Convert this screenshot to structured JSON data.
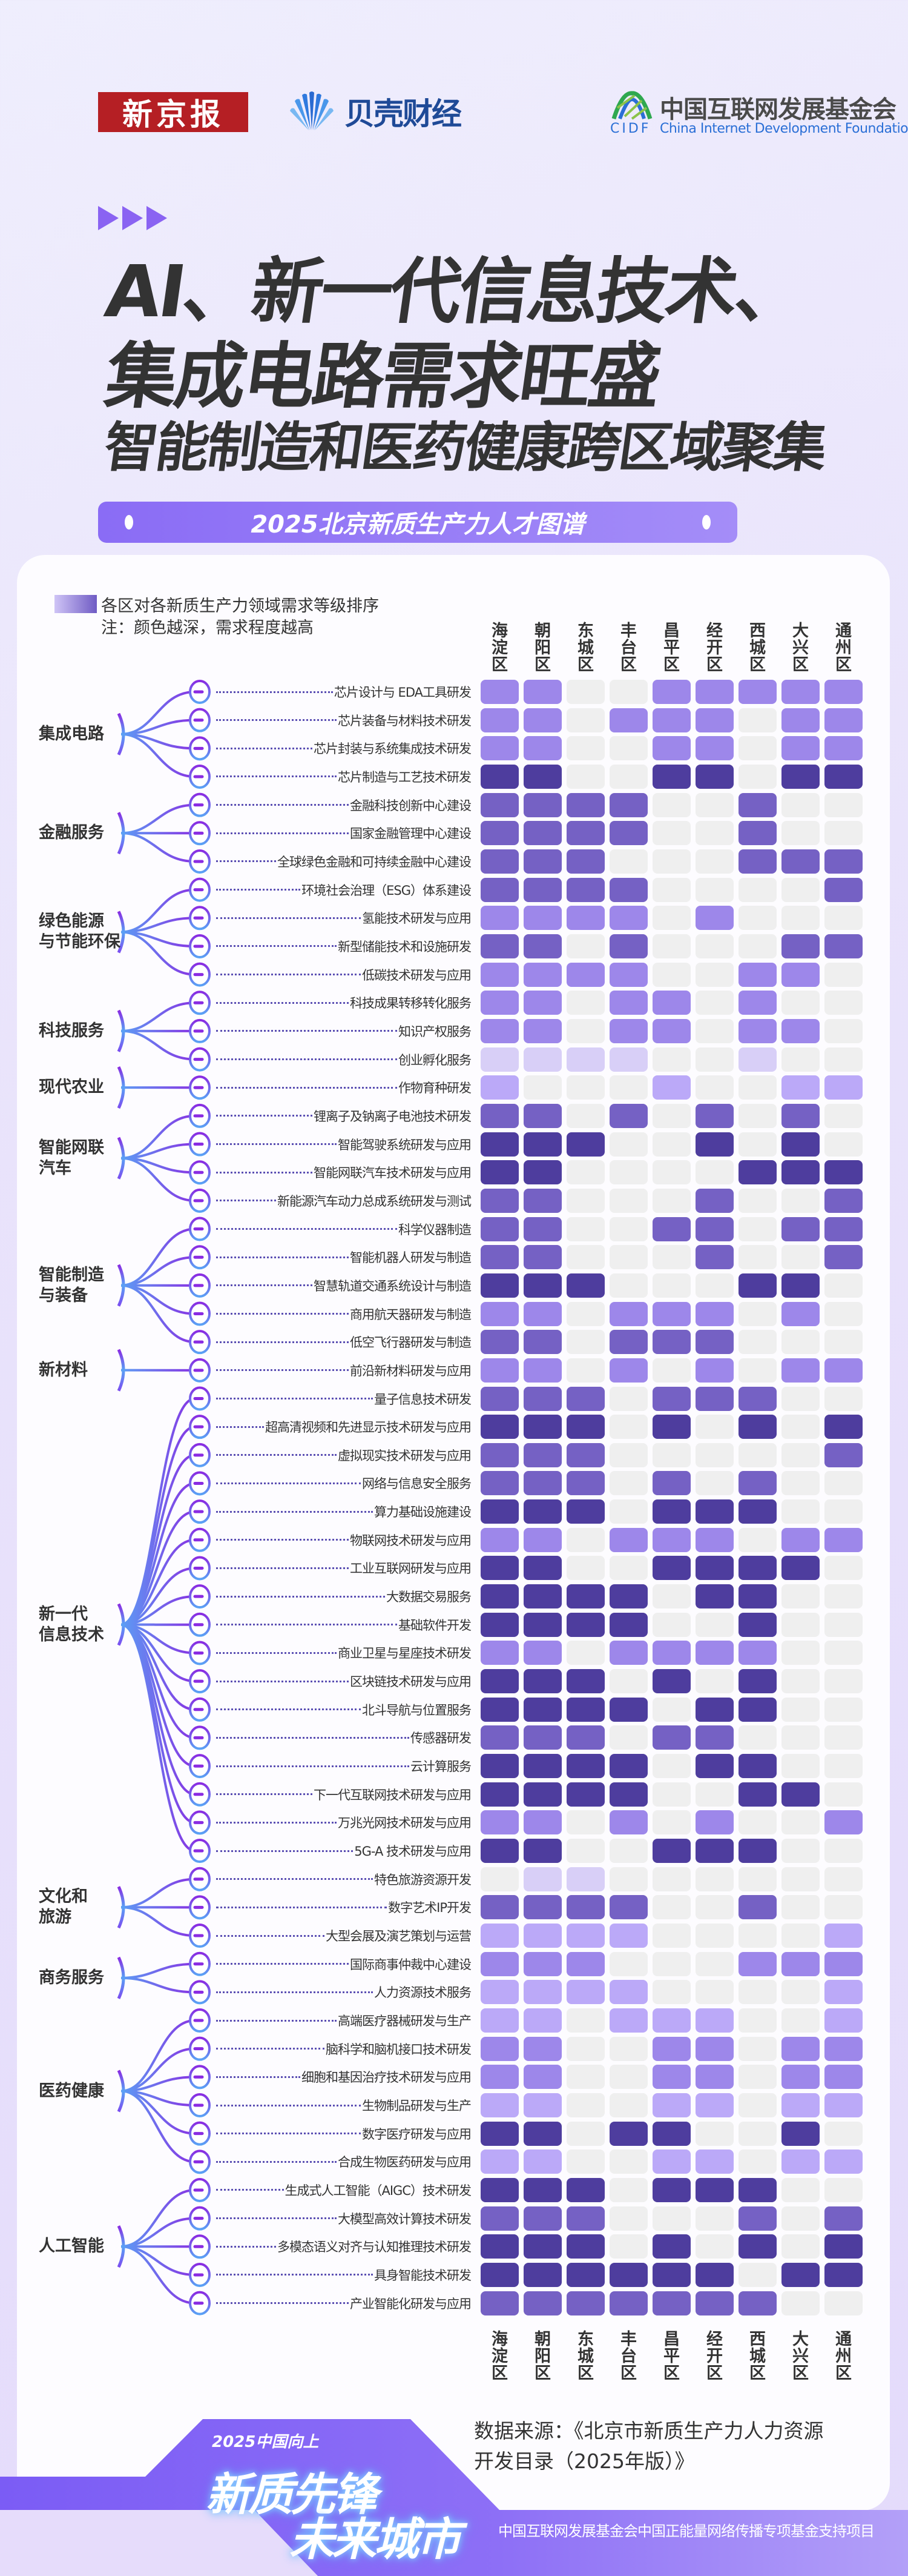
{
  "header": {
    "logos": {
      "xinjingbao": "新京报",
      "beike": "贝壳财经",
      "cidf_cn": "中国互联网发展基金会",
      "cidf_abbr": "CIDF",
      "cidf_en": "China Internet Development Foundation"
    },
    "title_lines": [
      "AI、新一代信息技术、",
      "集成电路需求旺盛",
      "智能制造和医药健康跨区域聚集"
    ],
    "subtitle": "2025北京新质生产力人才图谱"
  },
  "legend": {
    "title": "各区对各新质生产力领域需求等级排序",
    "note": "注：颜色越深，需求程度越高"
  },
  "chart_data": {
    "type": "heatmap",
    "value_meaning": "需求等级（0=无，1–5 颜色越深需求越高）",
    "level_colors": [
      "#efefef",
      "#d8cff7",
      "#bba9f8",
      "#9d87ea",
      "#7561c4",
      "#4e3d9e"
    ],
    "columns": [
      "海淀区",
      "朝阳区",
      "东城区",
      "丰台区",
      "昌平区",
      "经开区",
      "西城区",
      "大兴区",
      "通州区"
    ],
    "categories": [
      {
        "name": "集成电路",
        "rows": [
          {
            "label": "芯片设计与 EDA工具研发",
            "values": [
              3,
              3,
              0,
              0,
              3,
              3,
              3,
              3,
              3
            ]
          },
          {
            "label": "芯片装备与材料技术研发",
            "values": [
              3,
              3,
              0,
              3,
              3,
              3,
              0,
              3,
              3
            ]
          },
          {
            "label": "芯片封装与系统集成技术研发",
            "values": [
              3,
              3,
              0,
              0,
              3,
              3,
              0,
              3,
              3
            ]
          },
          {
            "label": "芯片制造与工艺技术研发",
            "values": [
              5,
              5,
              0,
              0,
              5,
              5,
              0,
              5,
              5
            ]
          }
        ]
      },
      {
        "name": "金融服务",
        "rows": [
          {
            "label": "金融科技创新中心建设",
            "values": [
              4,
              4,
              4,
              4,
              0,
              0,
              4,
              0,
              0
            ]
          },
          {
            "label": "国家金融管理中心建设",
            "values": [
              4,
              4,
              4,
              4,
              0,
              0,
              4,
              0,
              0
            ]
          },
          {
            "label": "全球绿色金融和可持续金融中心建设",
            "values": [
              4,
              4,
              4,
              0,
              0,
              0,
              4,
              4,
              4
            ]
          }
        ]
      },
      {
        "name": "绿色能源\n与节能环保",
        "rows": [
          {
            "label": "环境社会治理（ESG）体系建设",
            "values": [
              4,
              4,
              4,
              4,
              0,
              0,
              0,
              0,
              4
            ]
          },
          {
            "label": "氢能技术研发与应用",
            "values": [
              3,
              3,
              3,
              3,
              0,
              3,
              0,
              0,
              0
            ]
          },
          {
            "label": "新型储能技术和设施研发",
            "values": [
              4,
              4,
              0,
              4,
              0,
              0,
              0,
              4,
              4
            ]
          },
          {
            "label": "低碳技术研发与应用",
            "values": [
              3,
              3,
              3,
              3,
              0,
              0,
              3,
              3,
              0
            ]
          }
        ]
      },
      {
        "name": "科技服务",
        "rows": [
          {
            "label": "科技成果转移转化服务",
            "values": [
              3,
              3,
              0,
              3,
              3,
              0,
              3,
              0,
              0
            ]
          },
          {
            "label": "知识产权服务",
            "values": [
              3,
              3,
              0,
              3,
              3,
              0,
              3,
              3,
              0
            ]
          },
          {
            "label": "创业孵化服务",
            "values": [
              1,
              1,
              1,
              1,
              0,
              0,
              1,
              0,
              0
            ]
          }
        ]
      },
      {
        "name": "现代农业",
        "rows": [
          {
            "label": "作物育种研发",
            "values": [
              2,
              0,
              0,
              0,
              2,
              0,
              0,
              2,
              2
            ]
          }
        ]
      },
      {
        "name": "智能网联\n汽车",
        "rows": [
          {
            "label": "锂离子及钠离子电池技术研发",
            "values": [
              4,
              4,
              0,
              4,
              0,
              4,
              0,
              4,
              0
            ]
          },
          {
            "label": "智能驾驶系统研发与应用",
            "values": [
              5,
              5,
              5,
              0,
              0,
              5,
              0,
              5,
              0
            ]
          },
          {
            "label": "智能网联汽车技术研发与应用",
            "values": [
              5,
              5,
              0,
              0,
              0,
              0,
              5,
              5,
              5
            ]
          },
          {
            "label": "新能源汽车动力总成系统研发与测试",
            "values": [
              4,
              4,
              0,
              0,
              0,
              4,
              0,
              0,
              4
            ]
          }
        ]
      },
      {
        "name": "智能制造\n与装备",
        "rows": [
          {
            "label": "科学仪器制造",
            "values": [
              4,
              4,
              0,
              0,
              4,
              4,
              0,
              4,
              4
            ]
          },
          {
            "label": "智能机器人研发与制造",
            "values": [
              4,
              4,
              0,
              0,
              0,
              4,
              0,
              0,
              4
            ]
          },
          {
            "label": "智慧轨道交通系统设计与制造",
            "values": [
              5,
              5,
              5,
              0,
              0,
              0,
              5,
              5,
              0
            ]
          },
          {
            "label": "商用航天器研发与制造",
            "values": [
              3,
              3,
              0,
              3,
              3,
              3,
              0,
              3,
              0
            ]
          },
          {
            "label": "低空飞行器研发与制造",
            "values": [
              4,
              4,
              0,
              4,
              4,
              4,
              0,
              0,
              0
            ]
          }
        ]
      },
      {
        "name": "新材料",
        "rows": [
          {
            "label": "前沿新材料研发与应用",
            "values": [
              3,
              3,
              0,
              3,
              0,
              3,
              0,
              3,
              3
            ]
          }
        ]
      },
      {
        "name": "新一代\n信息技术",
        "rows": [
          {
            "label": "量子信息技术研发",
            "values": [
              4,
              4,
              4,
              0,
              4,
              4,
              4,
              0,
              0
            ]
          },
          {
            "label": "超高清视频和先进显示技术研发与应用",
            "values": [
              5,
              5,
              5,
              0,
              5,
              0,
              5,
              0,
              5
            ]
          },
          {
            "label": "虚拟现实技术研发与应用",
            "values": [
              4,
              4,
              4,
              0,
              0,
              0,
              0,
              0,
              4
            ]
          },
          {
            "label": "网络与信息安全服务",
            "values": [
              4,
              4,
              4,
              0,
              4,
              0,
              4,
              0,
              0
            ]
          },
          {
            "label": "算力基础设施建设",
            "values": [
              5,
              5,
              5,
              0,
              5,
              5,
              5,
              0,
              0
            ]
          },
          {
            "label": "物联网技术研发与应用",
            "values": [
              3,
              3,
              0,
              3,
              3,
              3,
              0,
              3,
              3
            ]
          },
          {
            "label": "工业互联网研发与应用",
            "values": [
              5,
              5,
              0,
              0,
              5,
              5,
              5,
              5,
              0
            ]
          },
          {
            "label": "大数据交易服务",
            "values": [
              5,
              5,
              5,
              5,
              0,
              5,
              5,
              0,
              0
            ]
          },
          {
            "label": "基础软件开发",
            "values": [
              5,
              5,
              5,
              5,
              0,
              0,
              5,
              0,
              0
            ]
          },
          {
            "label": "商业卫星与星座技术研发",
            "values": [
              3,
              3,
              0,
              3,
              3,
              3,
              3,
              0,
              0
            ]
          },
          {
            "label": "区块链技术研发与应用",
            "values": [
              5,
              5,
              5,
              0,
              5,
              0,
              5,
              0,
              0
            ]
          },
          {
            "label": "北斗导航与位置服务",
            "values": [
              5,
              5,
              5,
              5,
              0,
              5,
              5,
              0,
              0
            ]
          },
          {
            "label": "传感器研发",
            "values": [
              4,
              4,
              4,
              0,
              4,
              4,
              0,
              0,
              0
            ]
          },
          {
            "label": "云计算服务",
            "values": [
              5,
              5,
              5,
              5,
              0,
              5,
              5,
              0,
              0
            ]
          },
          {
            "label": "下一代互联网技术研发与应用",
            "values": [
              5,
              5,
              5,
              5,
              0,
              0,
              5,
              5,
              0
            ]
          },
          {
            "label": "万兆光网技术研发与应用",
            "values": [
              3,
              3,
              0,
              3,
              0,
              3,
              0,
              0,
              3
            ]
          },
          {
            "label": "5G-A 技术研发与应用",
            "values": [
              5,
              5,
              0,
              0,
              5,
              5,
              5,
              0,
              0
            ]
          }
        ]
      },
      {
        "name": "文化和\n旅游",
        "rows": [
          {
            "label": "特色旅游资源开发",
            "values": [
              0,
              1,
              1,
              0,
              0,
              0,
              0,
              0,
              0
            ]
          },
          {
            "label": "数字艺术IP开发",
            "values": [
              4,
              4,
              4,
              4,
              0,
              0,
              4,
              0,
              0
            ]
          },
          {
            "label": "大型会展及演艺策划与运营",
            "values": [
              2,
              2,
              2,
              2,
              0,
              0,
              0,
              0,
              2
            ]
          }
        ]
      },
      {
        "name": "商务服务",
        "rows": [
          {
            "label": "国际商事仲裁中心建设",
            "values": [
              3,
              3,
              3,
              0,
              0,
              0,
              3,
              3,
              3
            ]
          },
          {
            "label": "人力资源技术服务",
            "values": [
              2,
              2,
              2,
              2,
              0,
              0,
              0,
              0,
              2
            ]
          }
        ]
      },
      {
        "name": "医药健康",
        "rows": [
          {
            "label": "高端医疗器械研发与生产",
            "values": [
              2,
              2,
              0,
              2,
              2,
              2,
              0,
              0,
              2
            ]
          },
          {
            "label": "脑科学和脑机接口技术研发",
            "values": [
              3,
              3,
              0,
              0,
              3,
              3,
              0,
              3,
              3
            ]
          },
          {
            "label": "细胞和基因治疗技术研发与应用",
            "values": [
              3,
              3,
              0,
              0,
              3,
              3,
              0,
              3,
              3
            ]
          },
          {
            "label": "生物制品研发与生产",
            "values": [
              2,
              2,
              0,
              0,
              2,
              2,
              0,
              2,
              2
            ]
          },
          {
            "label": "数字医疗研发与应用",
            "values": [
              5,
              5,
              0,
              5,
              5,
              0,
              0,
              5,
              0
            ]
          },
          {
            "label": "合成生物医药研发与应用",
            "values": [
              2,
              2,
              0,
              0,
              2,
              2,
              0,
              2,
              2
            ]
          }
        ]
      },
      {
        "name": "人工智能",
        "rows": [
          {
            "label": "生成式人工智能（AIGC）技术研发",
            "values": [
              5,
              5,
              5,
              0,
              5,
              5,
              5,
              0,
              0
            ]
          },
          {
            "label": "大模型高效计算技术研发",
            "values": [
              4,
              4,
              4,
              0,
              0,
              0,
              4,
              0,
              4
            ]
          },
          {
            "label": "多模态语义对齐与认知推理技术研发",
            "values": [
              5,
              5,
              5,
              0,
              5,
              0,
              5,
              0,
              5
            ]
          },
          {
            "label": "具身智能技术研发",
            "values": [
              5,
              5,
              5,
              5,
              5,
              5,
              0,
              5,
              5
            ]
          },
          {
            "label": "产业智能化研发与应用",
            "values": [
              4,
              4,
              4,
              4,
              4,
              4,
              4,
              0,
              0
            ]
          }
        ]
      }
    ]
  },
  "footer": {
    "source_line1": "数据来源：《北京市新质生产力人力资源",
    "source_line2": "开发目录（2025年版）》",
    "slogan_small": "2025中国向上",
    "slogan_line1": "新质先锋",
    "slogan_line2": "未来城市",
    "support": "中国互联网发展基金会中国正能量网络传播专项基金支持项目"
  }
}
